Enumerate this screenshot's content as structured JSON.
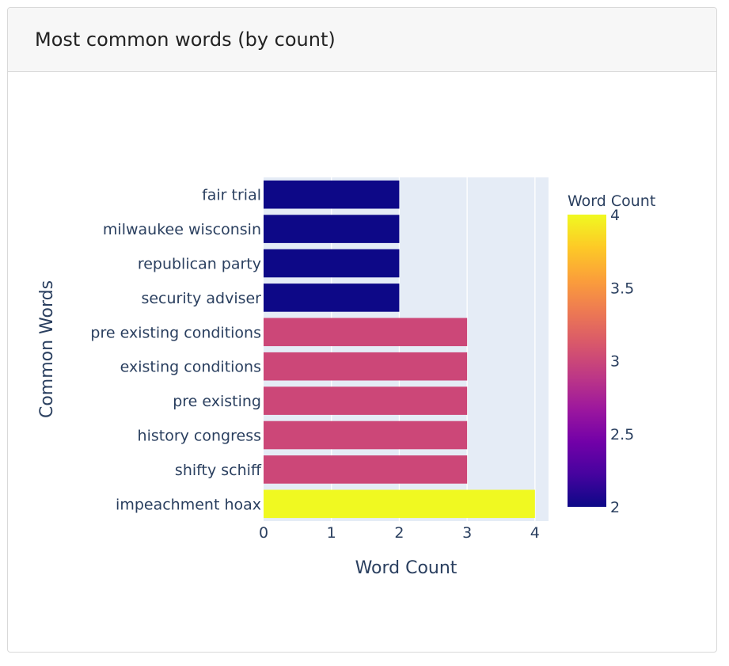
{
  "card": {
    "title": "Most common words (by count)"
  },
  "chart_data": {
    "type": "bar",
    "orientation": "horizontal",
    "categories": [
      "impeachment hoax",
      "shifty schiff",
      "history congress",
      "pre existing",
      "existing conditions",
      "pre existing conditions",
      "security adviser",
      "republican party",
      "milwaukee wisconsin",
      "fair trial"
    ],
    "values": [
      4,
      3,
      3,
      3,
      3,
      3,
      2,
      2,
      2,
      2
    ],
    "xlabel": "Word Count",
    "ylabel": "Common Words",
    "xlim": [
      0,
      4.2
    ],
    "xticks": [
      0,
      1,
      2,
      3,
      4
    ],
    "grid": true,
    "colorbar": {
      "title": "Word Count",
      "range": [
        2,
        4
      ],
      "ticks": [
        2,
        2.5,
        3,
        3.5,
        4
      ],
      "colors": {
        "2": "#0d0887",
        "3": "#cc4778",
        "4": "#f0f921"
      }
    }
  }
}
